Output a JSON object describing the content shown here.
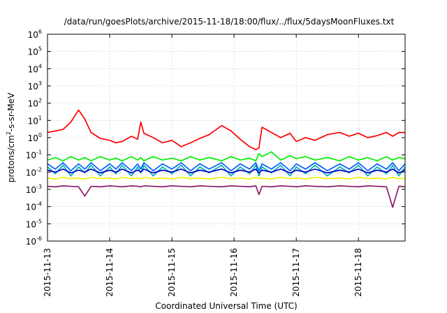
{
  "chart_data": {
    "type": "line",
    "title": "/data/run/goesPlots/archive/2015-11-18/18:00/flux/../flux/5daysMoonFluxes.txt",
    "xlabel": "Coordinated Universal Time (UTC)",
    "ylabel_parts": {
      "prefix": "protons/cm",
      "exponent": "2",
      "suffix": "-s-sr-MeV"
    },
    "x_tick_labels": [
      "2015-11-13",
      "2015-11-14",
      "2015-11-15",
      "2015-11-16",
      "2015-11-17",
      "2015-11-18"
    ],
    "x_range_days": [
      0,
      5.75
    ],
    "y_scale": "log",
    "ylim": [
      1e-06,
      1000000.0
    ],
    "y_tick_exponents": [
      -6,
      -5,
      -4,
      -3,
      -2,
      -1,
      0,
      1,
      2,
      3,
      4,
      5,
      6
    ],
    "y_tick_base": "10",
    "grid": true,
    "x": [
      0.0,
      0.125,
      0.25,
      0.375,
      0.5,
      0.6,
      0.7,
      0.85,
      1.0,
      1.1,
      1.2,
      1.35,
      1.45,
      1.5,
      1.55,
      1.7,
      1.85,
      2.0,
      2.15,
      2.3,
      2.45,
      2.6,
      2.8,
      2.95,
      3.1,
      3.25,
      3.35,
      3.4,
      3.45,
      3.6,
      3.75,
      3.9,
      4.0,
      4.15,
      4.3,
      4.5,
      4.7,
      4.85,
      5.0,
      5.15,
      5.3,
      5.45,
      5.55,
      5.65,
      5.75
    ],
    "series": [
      {
        "color": "#ff0000",
        "values": [
          2.0,
          2.4,
          3.0,
          8.0,
          40.0,
          12.0,
          2.0,
          0.9,
          0.7,
          0.5,
          0.6,
          1.2,
          0.8,
          8.0,
          1.8,
          1.0,
          0.5,
          0.7,
          0.3,
          0.5,
          0.9,
          1.5,
          5.0,
          2.5,
          0.8,
          0.3,
          0.2,
          0.25,
          4.0,
          2.0,
          1.0,
          1.8,
          0.6,
          1.0,
          0.7,
          1.5,
          2.0,
          1.2,
          1.8,
          1.0,
          1.3,
          2.0,
          1.2,
          2.0,
          2.0
        ]
      },
      {
        "color": "#00ee00",
        "values": [
          0.05,
          0.07,
          0.045,
          0.08,
          0.05,
          0.07,
          0.045,
          0.08,
          0.05,
          0.065,
          0.045,
          0.08,
          0.05,
          0.07,
          0.045,
          0.08,
          0.05,
          0.065,
          0.045,
          0.08,
          0.05,
          0.07,
          0.045,
          0.08,
          0.05,
          0.065,
          0.045,
          0.12,
          0.08,
          0.15,
          0.05,
          0.09,
          0.06,
          0.08,
          0.05,
          0.07,
          0.045,
          0.08,
          0.05,
          0.07,
          0.045,
          0.08,
          0.05,
          0.07,
          0.06
        ]
      },
      {
        "color": "#00b0b0",
        "values": [
          0.02,
          0.008,
          0.025,
          0.006,
          0.02,
          0.009,
          0.025,
          0.006,
          0.02,
          0.008,
          0.025,
          0.006,
          0.02,
          0.009,
          0.025,
          0.006,
          0.02,
          0.008,
          0.025,
          0.006,
          0.02,
          0.009,
          0.025,
          0.006,
          0.02,
          0.008,
          0.025,
          0.006,
          0.02,
          0.009,
          0.025,
          0.006,
          0.02,
          0.008,
          0.025,
          0.006,
          0.02,
          0.009,
          0.025,
          0.006,
          0.02,
          0.008,
          0.025,
          0.006,
          0.02
        ]
      },
      {
        "color": "#0060ff",
        "values": [
          0.03,
          0.015,
          0.035,
          0.012,
          0.03,
          0.015,
          0.035,
          0.012,
          0.03,
          0.015,
          0.035,
          0.012,
          0.03,
          0.015,
          0.035,
          0.012,
          0.03,
          0.015,
          0.035,
          0.012,
          0.03,
          0.015,
          0.035,
          0.012,
          0.03,
          0.015,
          0.035,
          0.012,
          0.03,
          0.015,
          0.035,
          0.012,
          0.03,
          0.015,
          0.035,
          0.012,
          0.03,
          0.015,
          0.035,
          0.012,
          0.03,
          0.015,
          0.035,
          0.012,
          0.03
        ]
      },
      {
        "color": "#0000cc",
        "values": [
          0.013,
          0.01,
          0.015,
          0.009,
          0.013,
          0.01,
          0.015,
          0.009,
          0.013,
          0.01,
          0.015,
          0.009,
          0.013,
          0.01,
          0.015,
          0.009,
          0.013,
          0.01,
          0.015,
          0.009,
          0.013,
          0.01,
          0.015,
          0.009,
          0.013,
          0.01,
          0.015,
          0.009,
          0.013,
          0.01,
          0.015,
          0.009,
          0.013,
          0.01,
          0.015,
          0.009,
          0.013,
          0.01,
          0.015,
          0.009,
          0.013,
          0.01,
          0.015,
          0.009,
          0.013
        ]
      },
      {
        "color": "#f0f000",
        "values": [
          0.0045,
          0.004,
          0.005,
          0.0042,
          0.0045,
          0.004,
          0.005,
          0.0042,
          0.0045,
          0.004,
          0.005,
          0.0042,
          0.0045,
          0.004,
          0.005,
          0.0042,
          0.0045,
          0.004,
          0.005,
          0.0042,
          0.0045,
          0.004,
          0.005,
          0.0042,
          0.0045,
          0.004,
          0.005,
          0.0042,
          0.0045,
          0.004,
          0.005,
          0.0042,
          0.0045,
          0.004,
          0.005,
          0.0042,
          0.0045,
          0.004,
          0.005,
          0.0042,
          0.0045,
          0.004,
          0.005,
          0.0042,
          0.0045
        ]
      },
      {
        "color": "#8b1a6b",
        "values": [
          0.0015,
          0.0014,
          0.0016,
          0.0015,
          0.0014,
          0.0004,
          0.0015,
          0.0014,
          0.0016,
          0.0015,
          0.0014,
          0.0016,
          0.0015,
          0.0014,
          0.0016,
          0.0015,
          0.0014,
          0.0016,
          0.0015,
          0.0014,
          0.0016,
          0.0015,
          0.0014,
          0.0016,
          0.0015,
          0.0014,
          0.0016,
          0.0005,
          0.0015,
          0.0014,
          0.0016,
          0.0015,
          0.0014,
          0.0016,
          0.0015,
          0.0014,
          0.0016,
          0.0015,
          0.0014,
          0.0016,
          0.0015,
          0.0014,
          9e-05,
          0.0015,
          0.0014
        ]
      }
    ]
  }
}
